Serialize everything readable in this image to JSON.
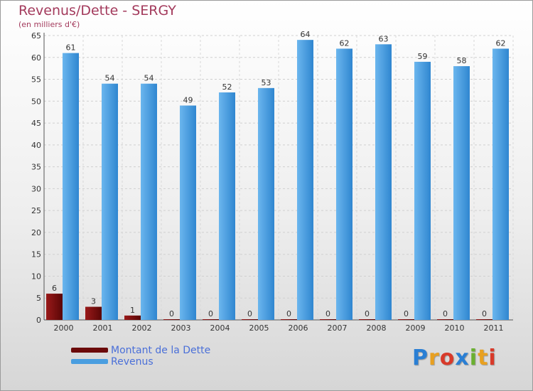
{
  "header": {
    "title": "Revenus/Dette - SERGY",
    "subtitle": "(en milliers d'€)"
  },
  "chart_data": {
    "type": "bar",
    "title": "Revenus/Dette - SERGY",
    "ylabel": "(en milliers d'€)",
    "xlabel": "",
    "ylim": [
      0,
      65
    ],
    "ytick_step": 5,
    "grid": true,
    "legend_position": "bottom-left",
    "categories": [
      "2000",
      "2001",
      "2002",
      "2003",
      "2004",
      "2005",
      "2006",
      "2007",
      "2008",
      "2009",
      "2010",
      "2011"
    ],
    "series": [
      {
        "name": "Montant de la Dette",
        "color": "#6b0a0a",
        "values": [
          6,
          3,
          1,
          0,
          0,
          0,
          0,
          0,
          0,
          0,
          0,
          0
        ]
      },
      {
        "name": "Revenus",
        "color": "#4a9ee0",
        "values": [
          61,
          54,
          54,
          49,
          52,
          53,
          64,
          62,
          63,
          59,
          58,
          62
        ]
      }
    ]
  },
  "legend": {
    "items": [
      {
        "label": "Montant de la Dette",
        "color": "#6b0a0a"
      },
      {
        "label": "Revenus",
        "color": "#4a9ee0"
      }
    ]
  },
  "logo": {
    "letters": [
      "P",
      "r",
      "o",
      "x",
      "i",
      "t",
      "i"
    ],
    "colors": [
      "#2a7fd4",
      "#e8a020",
      "#d83a2a",
      "#2a7fd4",
      "#6ab030",
      "#e8a020",
      "#d83a2a"
    ]
  }
}
